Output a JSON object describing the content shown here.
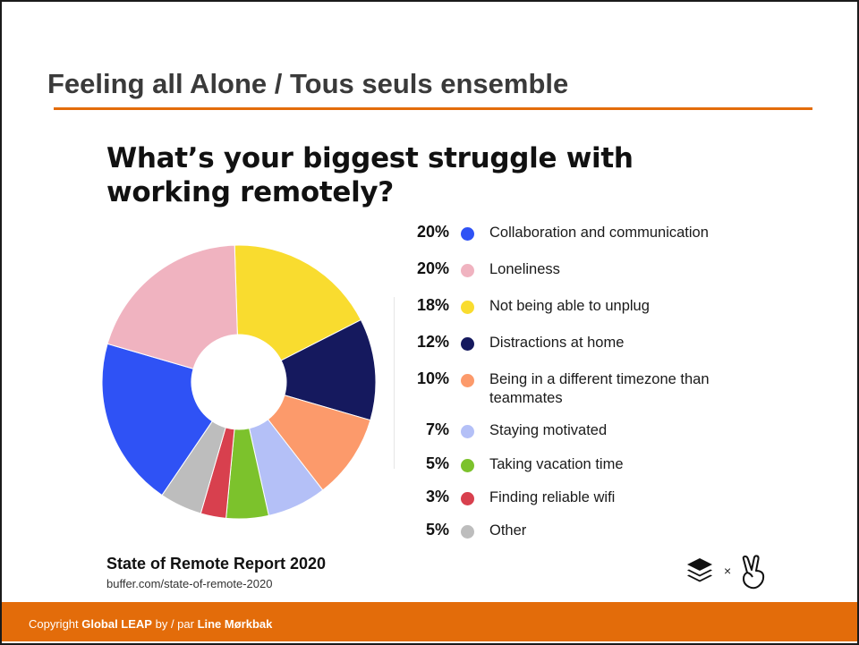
{
  "slide": {
    "title": "Feeling all Alone / Tous seuls ensemble"
  },
  "chart_data": {
    "type": "pie",
    "title": "What’s your biggest struggle with working remotely?",
    "donut": true,
    "categories": [
      "Collaboration and communication",
      "Loneliness",
      "Not being able to unplug",
      "Distractions at home",
      "Being in a different timezone than teammates",
      "Staying motivated",
      "Taking vacation time",
      "Finding reliable wifi",
      "Other"
    ],
    "values": [
      20,
      20,
      18,
      12,
      10,
      7,
      5,
      3,
      5
    ],
    "value_labels": [
      "20%",
      "20%",
      "18%",
      "12%",
      "10%",
      "7%",
      "5%",
      "3%",
      "5%"
    ],
    "colors": [
      "#2f52f5",
      "#f0b3c0",
      "#f9dc2f",
      "#15195e",
      "#fc9a6b",
      "#b4c0f7",
      "#7cc22c",
      "#d8404e",
      "#bdbdbd"
    ],
    "legend_position": "right"
  },
  "source": {
    "report": "State of Remote Report 2020",
    "url": "buffer.com/state-of-remote-2020",
    "logos": [
      "buffer-logo-icon",
      "angellist-logo-icon"
    ],
    "separator": "×"
  },
  "footer": {
    "prefix": "Copyright ",
    "org": "Global LEAP",
    "middle": " by / par ",
    "author": "Line Mørkbak",
    "bar_color": "#e36c0a"
  }
}
